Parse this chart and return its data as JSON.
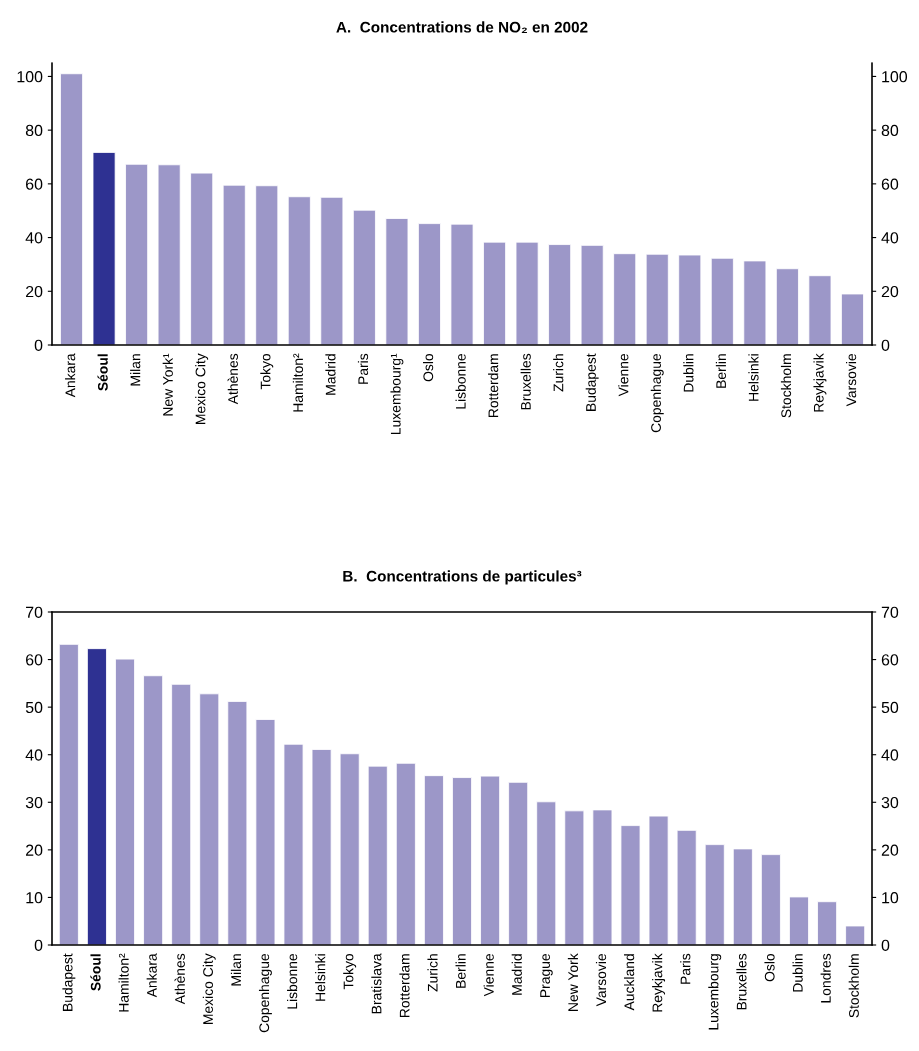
{
  "chart_data": [
    {
      "type": "bar",
      "title": "A.  Concentrations de NO₂ en 2002",
      "categories": [
        "Ankara",
        "Séoul",
        "Milan",
        "New York¹",
        "Mexico City",
        "Athènes",
        "Tokyo",
        "Hamilton²",
        "Madrid",
        "Paris",
        "Luxembourg¹",
        "Oslo",
        "Lisbonne",
        "Rotterdam",
        "Bruxelles",
        "Zurich",
        "Budapest",
        "Vienne",
        "Copenhague",
        "Dublin",
        "Berlin",
        "Helsinki",
        "Stockholm",
        "Reykjavik",
        "Varsovie"
      ],
      "values": [
        101.0,
        71.7,
        67.3,
        67.1,
        64.0,
        59.5,
        59.3,
        55.2,
        55.0,
        50.2,
        47.1,
        45.2,
        45.0,
        38.3,
        38.3,
        37.4,
        37.1,
        34.0,
        33.8,
        33.5,
        32.3,
        31.3,
        28.4,
        25.8,
        19.0
      ],
      "colors": [
        "#9c97c8",
        "#2e3192",
        "#9c97c8",
        "#9c97c8",
        "#9c97c8",
        "#9c97c8",
        "#9c97c8",
        "#9c97c8",
        "#9c97c8",
        "#9c97c8",
        "#9c97c8",
        "#9c97c8",
        "#9c97c8",
        "#9c97c8",
        "#9c97c8",
        "#9c97c8",
        "#9c97c8",
        "#9c97c8",
        "#9c97c8",
        "#9c97c8",
        "#9c97c8",
        "#9c97c8",
        "#9c97c8",
        "#9c97c8",
        "#9c97c8"
      ],
      "ylim": [
        0,
        105
      ],
      "yticks": [
        0,
        20,
        40,
        60,
        80,
        100
      ],
      "y2lim": [
        0,
        105
      ],
      "y2ticks": [
        0,
        20,
        40,
        60,
        80,
        100
      ],
      "grid": false,
      "legend": false
    },
    {
      "type": "bar",
      "title": "B.  Concentrations de particules³",
      "categories": [
        "Budapest",
        "Séoul",
        "Hamilton²",
        "Ankara",
        "Athènes",
        "Mexico City",
        "Milan",
        "Copenhague",
        "Lisbonne",
        "Helsinki",
        "Tokyo",
        "Bratislava",
        "Rotterdam",
        "Zurich",
        "Berlin",
        "Vienne",
        "Madrid",
        "Prague",
        "New York",
        "Varsovie",
        "Auckland",
        "Reykjavik",
        "Paris",
        "Luxembourg",
        "Bruxelles",
        "Oslo",
        "Dublin",
        "Londres",
        "Stockholm"
      ],
      "values": [
        63.2,
        62.3,
        60.1,
        56.6,
        54.8,
        52.8,
        51.2,
        47.4,
        42.2,
        41.1,
        40.2,
        37.6,
        38.2,
        35.6,
        35.2,
        35.5,
        34.2,
        30.1,
        28.2,
        28.4,
        25.1,
        27.1,
        24.1,
        21.1,
        20.2,
        19.0,
        10.1,
        9.1,
        4.0
      ],
      "colors": [
        "#9c97c8",
        "#2e3192",
        "#9c97c8",
        "#9c97c8",
        "#9c97c8",
        "#9c97c8",
        "#9c97c8",
        "#9c97c8",
        "#9c97c8",
        "#9c97c8",
        "#9c97c8",
        "#9c97c8",
        "#9c97c8",
        "#9c97c8",
        "#9c97c8",
        "#9c97c8",
        "#9c97c8",
        "#9c97c8",
        "#9c97c8",
        "#9c97c8",
        "#9c97c8",
        "#9c97c8",
        "#9c97c8",
        "#9c97c8",
        "#9c97c8",
        "#9c97c8",
        "#9c97c8",
        "#9c97c8",
        "#9c97c8"
      ],
      "ylim": [
        0,
        70
      ],
      "yticks": [
        0,
        10,
        20,
        30,
        40,
        50,
        60,
        70
      ],
      "y2lim": [
        0,
        70
      ],
      "y2ticks": [
        0,
        10,
        20,
        30,
        40,
        50,
        60,
        70
      ],
      "grid": false,
      "legend": false
    }
  ]
}
